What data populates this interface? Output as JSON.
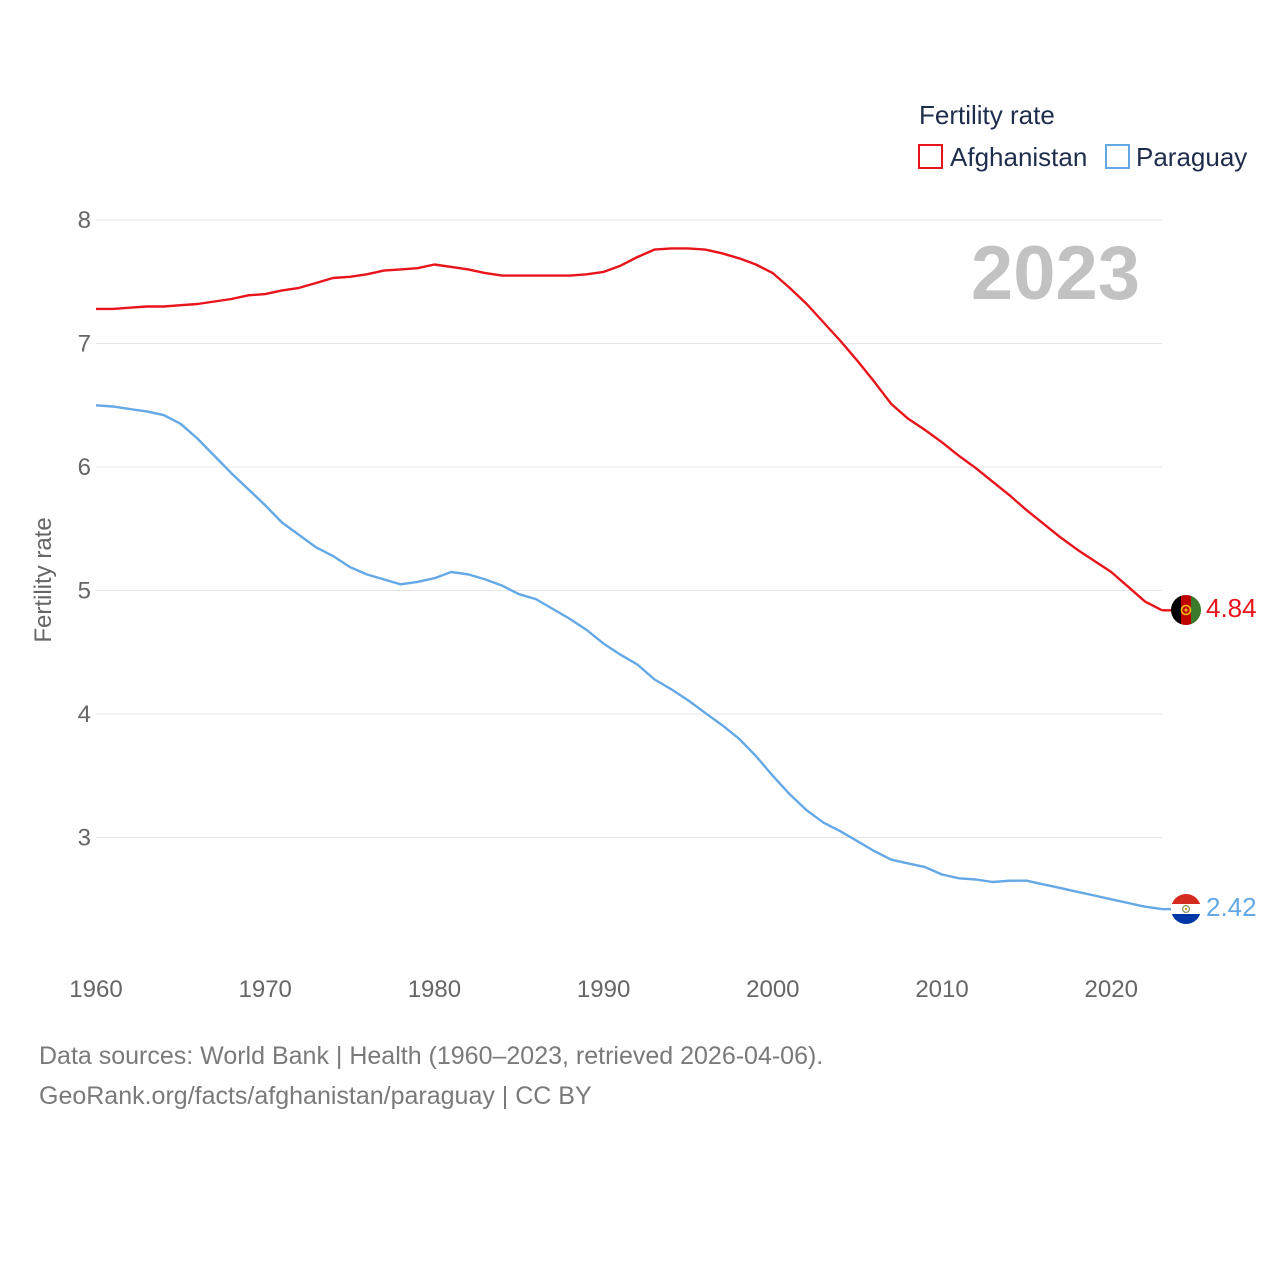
{
  "chart_data": {
    "type": "line",
    "title": "",
    "year_stamp": "2023",
    "legend_title": "Fertility rate",
    "legend_position": "top-right",
    "xlabel": "",
    "ylabel": "Fertility rate",
    "xlim": [
      1960,
      2023
    ],
    "ylim": [
      2.1,
      8.2
    ],
    "x_ticks": [
      1960,
      1970,
      1980,
      1990,
      2000,
      2010,
      2020
    ],
    "y_ticks": [
      3,
      4,
      5,
      6,
      7,
      8
    ],
    "grid": true,
    "x": [
      1960,
      1961,
      1962,
      1963,
      1964,
      1965,
      1966,
      1967,
      1968,
      1969,
      1970,
      1971,
      1972,
      1973,
      1974,
      1975,
      1976,
      1977,
      1978,
      1979,
      1980,
      1981,
      1982,
      1983,
      1984,
      1985,
      1986,
      1987,
      1988,
      1989,
      1990,
      1991,
      1992,
      1993,
      1994,
      1995,
      1996,
      1997,
      1998,
      1999,
      2000,
      2001,
      2002,
      2003,
      2004,
      2005,
      2006,
      2007,
      2008,
      2009,
      2010,
      2011,
      2012,
      2013,
      2014,
      2015,
      2016,
      2017,
      2018,
      2019,
      2020,
      2021,
      2022,
      2023
    ],
    "series": [
      {
        "name": "Afghanistan",
        "color": "#e8141c",
        "end_label": "4.84",
        "flag": "afghanistan-flag",
        "values": [
          7.28,
          7.28,
          7.29,
          7.3,
          7.3,
          7.31,
          7.32,
          7.34,
          7.36,
          7.39,
          7.4,
          7.43,
          7.45,
          7.49,
          7.53,
          7.54,
          7.56,
          7.59,
          7.6,
          7.61,
          7.64,
          7.62,
          7.6,
          7.57,
          7.55,
          7.55,
          7.55,
          7.55,
          7.55,
          7.56,
          7.58,
          7.63,
          7.7,
          7.76,
          7.77,
          7.77,
          7.76,
          7.73,
          7.69,
          7.64,
          7.57,
          7.45,
          7.32,
          7.17,
          7.02,
          6.86,
          6.69,
          6.51,
          6.39,
          6.3,
          6.2,
          6.09,
          5.99,
          5.88,
          5.77,
          5.65,
          5.54,
          5.43,
          5.33,
          5.24,
          5.15,
          5.03,
          4.91,
          4.84
        ]
      },
      {
        "name": "Paraguay",
        "color": "#64a8e6",
        "end_label": "2.42",
        "flag": "paraguay-flag",
        "values": [
          6.5,
          6.49,
          6.47,
          6.45,
          6.42,
          6.35,
          6.23,
          6.09,
          5.95,
          5.82,
          5.69,
          5.55,
          5.45,
          5.35,
          5.28,
          5.19,
          5.13,
          5.09,
          5.05,
          5.07,
          5.1,
          5.15,
          5.13,
          5.09,
          5.04,
          4.97,
          4.93,
          4.85,
          4.77,
          4.68,
          4.57,
          4.48,
          4.4,
          4.28,
          4.2,
          4.11,
          4.01,
          3.91,
          3.8,
          3.66,
          3.5,
          3.35,
          3.22,
          3.12,
          3.05,
          2.97,
          2.89,
          2.82,
          2.79,
          2.76,
          2.7,
          2.67,
          2.66,
          2.64,
          2.65,
          2.65,
          2.62,
          2.59,
          2.56,
          2.53,
          2.5,
          2.47,
          2.44,
          2.42
        ]
      }
    ]
  },
  "footer": {
    "line1": "Data sources: World Bank | Health (1960–2023, retrieved 2026-04-06).",
    "line2": "GeoRank.org/facts/afghanistan/paraguay | CC BY"
  }
}
